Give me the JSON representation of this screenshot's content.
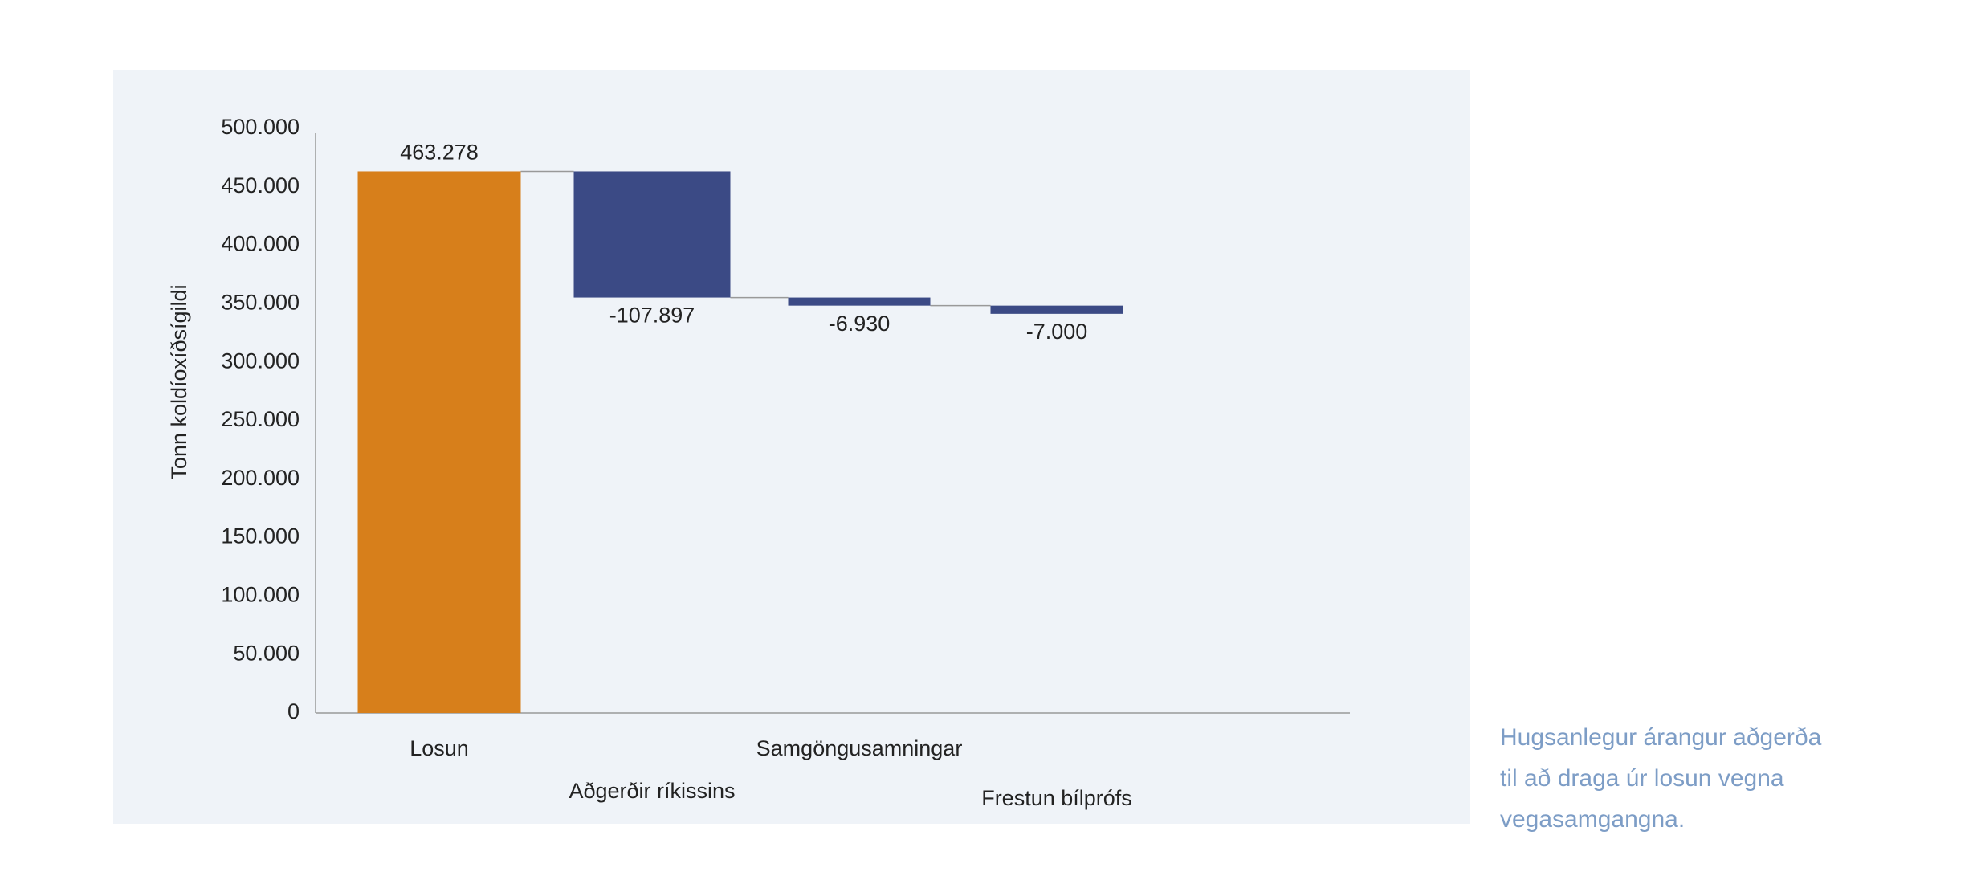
{
  "chart_data": {
    "type": "waterfall",
    "y_label": "Tonn koldíoxíðsígildi",
    "categories": [
      "Losun",
      "Aðgerðir ríkissins",
      "Samgöngusamningar",
      "Frestun bílprófs"
    ],
    "values": [
      463278,
      -107897,
      -6930,
      -7000
    ],
    "value_labels": [
      "463.278",
      "-107.897",
      "-6.930",
      "-7.000"
    ],
    "colors": [
      "#d77f1b",
      "#3b4a85",
      "#3b4a85",
      "#3b4a85"
    ],
    "ylim": [
      0,
      500000
    ],
    "yticks": [
      {
        "value": 0,
        "label": "0"
      },
      {
        "value": 50000,
        "label": "50.000"
      },
      {
        "value": 100000,
        "label": "100.000"
      },
      {
        "value": 150000,
        "label": "150.000"
      },
      {
        "value": 200000,
        "label": "200.000"
      },
      {
        "value": 250000,
        "label": "250.000"
      },
      {
        "value": 300000,
        "label": "300.000"
      },
      {
        "value": 350000,
        "label": "350.000"
      },
      {
        "value": 400000,
        "label": "400.000"
      },
      {
        "value": 450000,
        "label": "450.000"
      },
      {
        "value": 500000,
        "label": "500.000"
      }
    ],
    "caption": "Hugsanlegur árangur aðgerða til að draga úr losun vegna vegasamgangna."
  }
}
